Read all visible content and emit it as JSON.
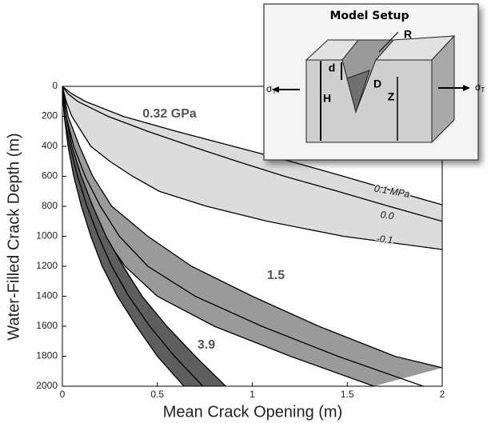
{
  "chart_data": {
    "type": "band",
    "xlabel": "Mean Crack Opening (m)",
    "ylabel": "Water-Filled Crack Depth (m)",
    "xlim": [
      0,
      2
    ],
    "xticks": [
      0,
      0.5,
      1,
      1.5,
      2
    ],
    "ylim": [
      0,
      2000
    ],
    "y_inverted": true,
    "yticks": [
      0,
      200,
      400,
      600,
      800,
      1000,
      1200,
      1400,
      1600,
      1800,
      2000
    ],
    "line_color": "#000000",
    "bands": [
      {
        "name": "0.32 GPa",
        "color": "#dcdcdc",
        "series": [
          {
            "name": "0.1 MPa",
            "x": [
              0,
              0.05,
              0.12,
              0.32,
              0.6,
              0.9,
              1.2,
              1.48,
              1.75,
              2.0
            ],
            "y": [
              0,
              50,
              100,
              200,
              300,
              400,
              500,
              600,
              700,
              790
            ]
          },
          {
            "name": "0.0",
            "x": [
              0,
              0.03,
              0.08,
              0.24,
              0.45,
              0.68,
              0.92,
              1.17,
              1.45,
              1.72,
              2.0
            ],
            "y": [
              0,
              50,
              100,
              200,
              300,
              400,
              500,
              600,
              700,
              800,
              900
            ]
          },
          {
            "name": "-0.1",
            "x": [
              0,
              0.02,
              0.05,
              0.15,
              0.25,
              0.37,
              0.51,
              0.76,
              1.08,
              1.48,
              2.0
            ],
            "y": [
              0,
              100,
              200,
              400,
              500,
              600,
              700,
              800,
              900,
              1000,
              1088
            ]
          }
        ]
      },
      {
        "name": "1.5",
        "color": "#9a9a9a",
        "series": [
          {
            "x": [
              0,
              0.03,
              0.09,
              0.16,
              0.26,
              0.45,
              0.68,
              1.0,
              1.35,
              1.75,
              2.0
            ],
            "y": [
              0,
              200,
              400,
              600,
              800,
              1000,
              1200,
              1400,
              1600,
              1800,
              1877
            ]
          },
          {
            "x": [
              0,
              0.02,
              0.06,
              0.12,
              0.2,
              0.3,
              0.45,
              0.7,
              1.05,
              1.45,
              1.9
            ],
            "y": [
              0,
              200,
              400,
              600,
              800,
              1000,
              1200,
              1400,
              1600,
              1800,
              2000
            ]
          },
          {
            "x": [
              0,
              0.01,
              0.04,
              0.09,
              0.15,
              0.22,
              0.33,
              0.5,
              0.8,
              1.2,
              1.64
            ],
            "y": [
              0,
              200,
              400,
              600,
              800,
              1000,
              1200,
              1400,
              1600,
              1800,
              2000
            ]
          }
        ]
      },
      {
        "name": "3.9",
        "color": "#5e5e5e",
        "series": [
          {
            "x": [
              0,
              0.02,
              0.05,
              0.1,
              0.16,
              0.23,
              0.32,
              0.42,
              0.55,
              0.7,
              0.86
            ],
            "y": [
              0,
              200,
              400,
              600,
              800,
              1000,
              1200,
              1400,
              1600,
              1800,
              2000
            ]
          },
          {
            "x": [
              0,
              0.01,
              0.04,
              0.08,
              0.13,
              0.19,
              0.26,
              0.35,
              0.46,
              0.59,
              0.74
            ],
            "y": [
              0,
              200,
              400,
              600,
              800,
              1000,
              1200,
              1400,
              1600,
              1800,
              2000
            ]
          },
          {
            "x": [
              0,
              0.01,
              0.03,
              0.06,
              0.1,
              0.15,
              0.21,
              0.29,
              0.39,
              0.5,
              0.64
            ],
            "y": [
              0,
              200,
              400,
              600,
              800,
              1000,
              1200,
              1400,
              1600,
              1800,
              2000
            ]
          }
        ]
      }
    ],
    "inset": {
      "title": "Model Setup",
      "R": "R",
      "d": "d",
      "D": "D",
      "H": "H",
      "Z": "Z",
      "stress": "σ",
      "stress_sub": "T"
    }
  }
}
